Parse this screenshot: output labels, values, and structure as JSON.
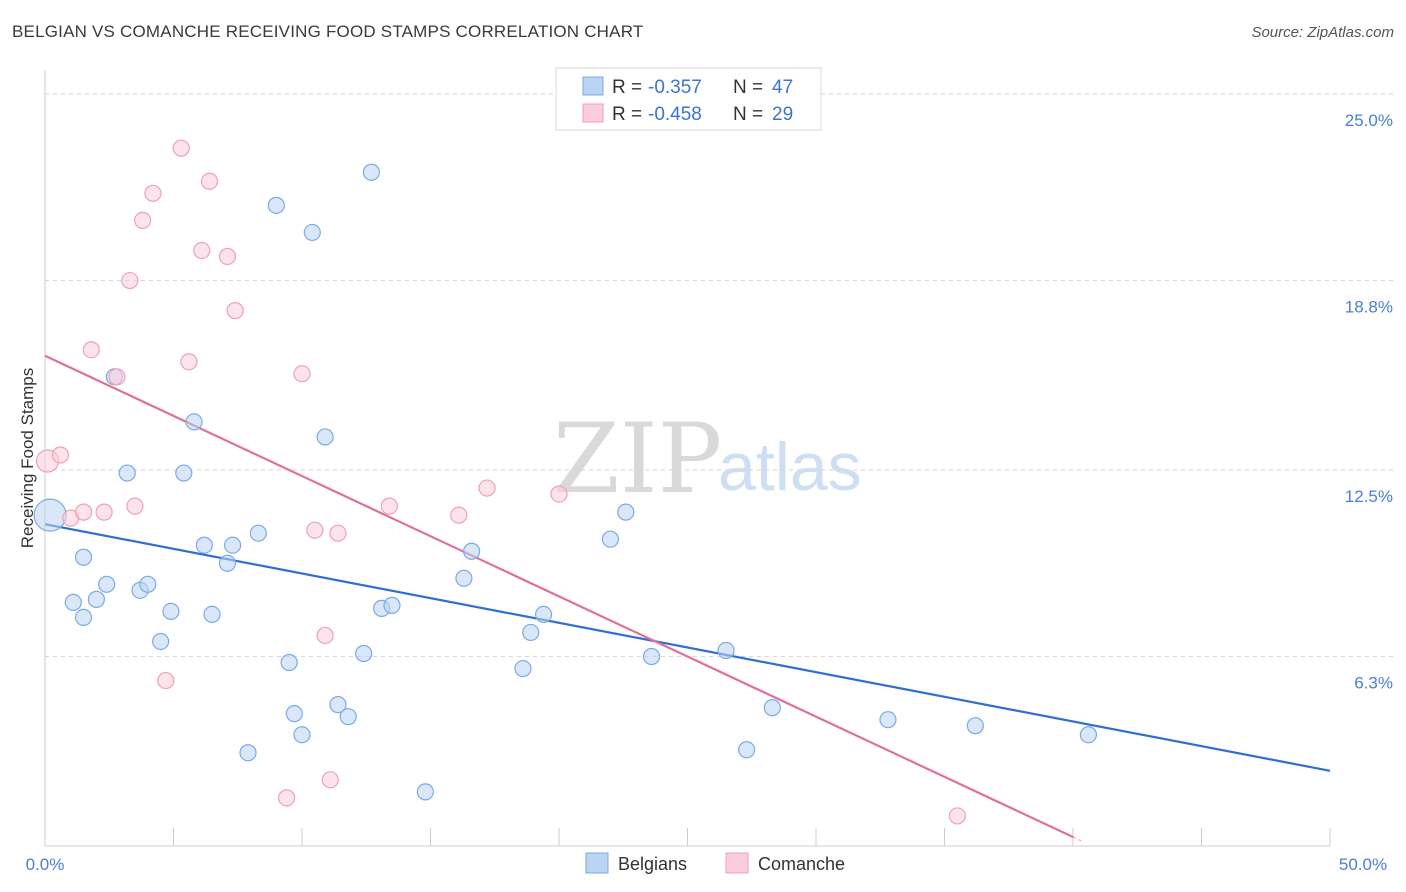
{
  "header": {
    "title": "BELGIAN VS COMANCHE RECEIVING FOOD STAMPS CORRELATION CHART",
    "source": "Source: ZipAtlas.com"
  },
  "watermark": {
    "zip": "ZIP",
    "atlas": "atlas"
  },
  "legend": {
    "rows": [
      {
        "r_label": "R =",
        "r_value": "-0.357",
        "n_label": "N =",
        "n_value": "47"
      },
      {
        "r_label": "R =",
        "r_value": "-0.458",
        "n_label": "N =",
        "n_value": "29"
      }
    ]
  },
  "bottom_legend": {
    "belgians": "Belgians",
    "comanche": "Comanche"
  },
  "chart_data": {
    "type": "scatter",
    "title": "BELGIAN VS COMANCHE RECEIVING FOOD STAMPS CORRELATION CHART",
    "xlabel": "",
    "ylabel": "Receiving Food Stamps",
    "xlim": [
      0,
      50
    ],
    "ylim": [
      0,
      25.8
    ],
    "x_tick_labels": [
      "0.0%",
      "50.0%"
    ],
    "y_ticks": [
      6.3,
      12.5,
      18.8,
      25.0
    ],
    "y_tick_labels": [
      "6.3%",
      "12.5%",
      "18.8%",
      "25.0%"
    ],
    "grid": true,
    "legend_position": "top-center",
    "colors": {
      "belgians": "#7aaae8",
      "comanche": "#f0a0b8",
      "belgians_line": "#2f6fd0",
      "comanche_line": "#e0709a"
    },
    "series": [
      {
        "name": "Belgians",
        "r": -0.357,
        "n": 47,
        "trend": [
          [
            0,
            10.7
          ],
          [
            50,
            2.5
          ]
        ],
        "points": [
          [
            0.2,
            11.0
          ],
          [
            1.1,
            8.1
          ],
          [
            1.5,
            9.6
          ],
          [
            1.5,
            7.6
          ],
          [
            2.0,
            8.2
          ],
          [
            2.4,
            8.7
          ],
          [
            2.7,
            15.6
          ],
          [
            3.2,
            12.4
          ],
          [
            3.7,
            8.5
          ],
          [
            4.0,
            8.7
          ],
          [
            4.5,
            6.8
          ],
          [
            4.9,
            7.8
          ],
          [
            5.4,
            12.4
          ],
          [
            5.8,
            14.1
          ],
          [
            6.2,
            10.0
          ],
          [
            6.5,
            7.7
          ],
          [
            7.1,
            9.4
          ],
          [
            7.3,
            10.0
          ],
          [
            7.9,
            3.1
          ],
          [
            8.3,
            10.4
          ],
          [
            9.0,
            21.3
          ],
          [
            9.5,
            6.1
          ],
          [
            9.7,
            4.4
          ],
          [
            10.0,
            3.7
          ],
          [
            10.4,
            20.4
          ],
          [
            10.9,
            13.6
          ],
          [
            11.4,
            4.7
          ],
          [
            11.8,
            4.3
          ],
          [
            12.4,
            6.4
          ],
          [
            12.7,
            22.4
          ],
          [
            13.1,
            7.9
          ],
          [
            13.5,
            8.0
          ],
          [
            14.8,
            1.8
          ],
          [
            16.3,
            8.9
          ],
          [
            16.6,
            9.8
          ],
          [
            18.6,
            5.9
          ],
          [
            18.9,
            7.1
          ],
          [
            19.4,
            7.7
          ],
          [
            22.0,
            10.2
          ],
          [
            22.6,
            11.1
          ],
          [
            23.6,
            6.3
          ],
          [
            26.5,
            6.5
          ],
          [
            27.3,
            3.2
          ],
          [
            28.3,
            4.6
          ],
          [
            32.8,
            4.2
          ],
          [
            36.2,
            4.0
          ],
          [
            40.6,
            3.7
          ]
        ]
      },
      {
        "name": "Comanche",
        "r": -0.458,
        "n": 29,
        "trend": [
          [
            0,
            16.3
          ],
          [
            40,
            0.3
          ]
        ],
        "points": [
          [
            0.1,
            12.8
          ],
          [
            0.6,
            13.0
          ],
          [
            1.0,
            10.9
          ],
          [
            1.5,
            11.1
          ],
          [
            1.8,
            16.5
          ],
          [
            2.3,
            11.1
          ],
          [
            2.8,
            15.6
          ],
          [
            3.3,
            18.8
          ],
          [
            3.5,
            11.3
          ],
          [
            3.8,
            20.8
          ],
          [
            4.2,
            21.7
          ],
          [
            4.7,
            5.5
          ],
          [
            5.3,
            23.2
          ],
          [
            5.6,
            16.1
          ],
          [
            6.1,
            19.8
          ],
          [
            6.4,
            22.1
          ],
          [
            7.1,
            19.6
          ],
          [
            7.4,
            17.8
          ],
          [
            9.4,
            1.6
          ],
          [
            10.0,
            15.7
          ],
          [
            10.5,
            10.5
          ],
          [
            10.9,
            7.0
          ],
          [
            11.1,
            2.2
          ],
          [
            11.4,
            10.4
          ],
          [
            13.4,
            11.3
          ],
          [
            16.1,
            11.0
          ],
          [
            17.2,
            11.9
          ],
          [
            20.0,
            11.7
          ],
          [
            35.5,
            1.0
          ]
        ]
      }
    ]
  }
}
